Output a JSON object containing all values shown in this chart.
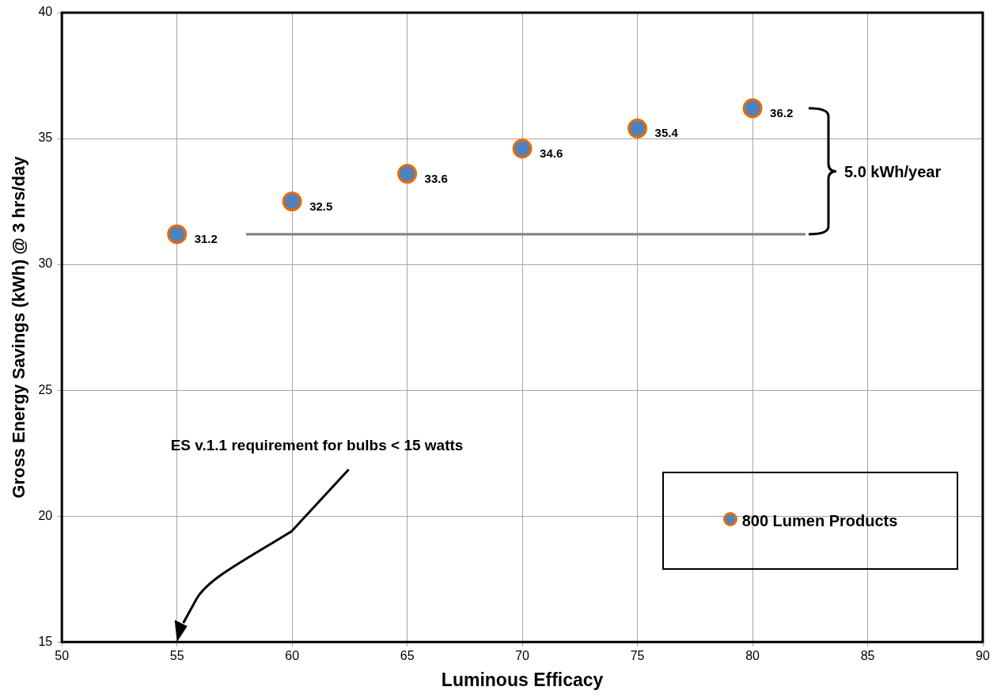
{
  "chart_data": {
    "type": "scatter",
    "xlabel": "Luminous Efficacy",
    "ylabel": "Gross Energy Savings (kWh) @ 3 hrs/day",
    "xlim": [
      50,
      90
    ],
    "xticks": [
      50,
      55,
      60,
      65,
      70,
      75,
      80,
      85,
      90
    ],
    "ylim": [
      15,
      40
    ],
    "yticks": [
      15,
      20,
      25,
      30,
      35,
      40
    ],
    "grid": true,
    "legend": "bottom right",
    "series": [
      {
        "name": "800 Lumen Products",
        "color": "#4f81bd",
        "marker": "circle",
        "x": [
          55,
          60,
          65,
          70,
          75,
          80
        ],
        "values": [
          31.2,
          32.5,
          33.6,
          34.6,
          35.4,
          36.2
        ],
        "value_labels": [
          "31.2",
          "32.5",
          "33.6",
          "34.6",
          "35.4",
          "36.2"
        ]
      },
      {
        "type": "line",
        "color": "#808080",
        "marker": "none",
        "x": [
          58,
          82.3
        ],
        "values": [
          31.2,
          31.2
        ]
      }
    ],
    "annotations": [
      "ES v.1.1 requirement for bulbs < 15 watts",
      "5.0 kWh/year"
    ]
  }
}
